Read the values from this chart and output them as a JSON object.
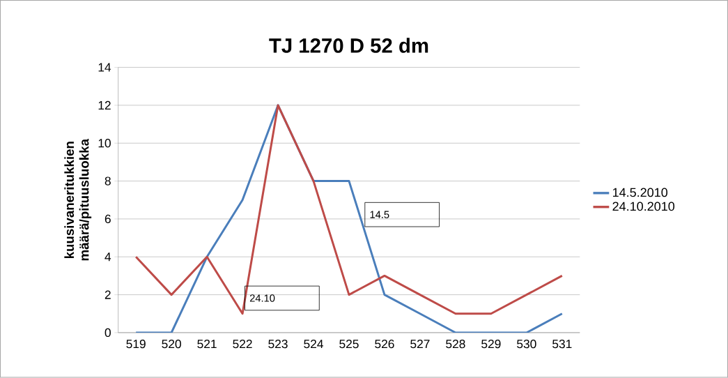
{
  "chart_data": {
    "type": "line",
    "title": "TJ 1270 D 52 dm",
    "ylabel": "kuusivaneritukkien määrä/pituusluokka",
    "categories": [
      "519",
      "520",
      "521",
      "522",
      "523",
      "524",
      "525",
      "526",
      "527",
      "528",
      "529",
      "530",
      "531"
    ],
    "series": [
      {
        "name": "14.5.2010",
        "color": "#4a7ebb",
        "values": [
          0,
          0,
          4,
          7,
          12,
          8,
          8,
          2,
          1,
          0,
          0,
          0,
          1
        ]
      },
      {
        "name": "24.10.2010",
        "color": "#be4b48",
        "values": [
          4,
          2,
          4,
          1,
          12,
          8,
          2,
          3,
          2,
          1,
          1,
          2,
          3
        ]
      }
    ],
    "ylim": [
      0,
      14
    ],
    "yticks": [
      0,
      2,
      4,
      6,
      8,
      10,
      12,
      14
    ],
    "grid": "y",
    "legend": "right",
    "marker": "none",
    "line_style": "solid",
    "annotations": [
      "14.5",
      "24.10"
    ]
  }
}
